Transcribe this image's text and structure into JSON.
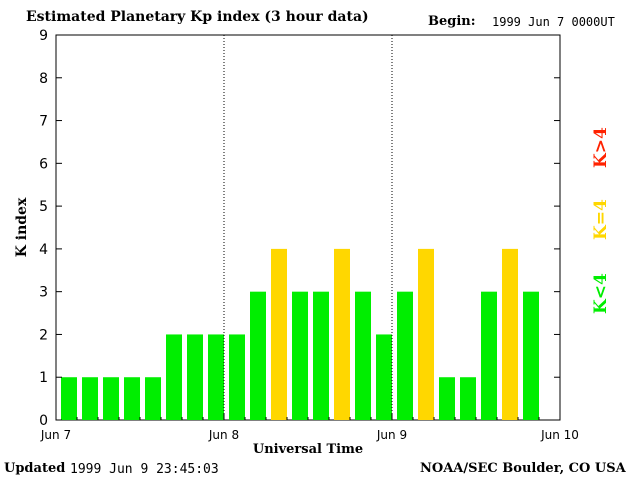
{
  "header": {
    "title": "Estimated Planetary Kp index (3 hour data)",
    "begin_label": "Begin:",
    "begin_value": "1999 Jun 7 0000UT"
  },
  "footer": {
    "updated_label": "Updated",
    "updated_value": "1999 Jun  9 23:45:03",
    "credit": "NOAA/SEC Boulder, CO USA"
  },
  "colors": {
    "low": "#00ee00",
    "equal": "#ffd700",
    "high": "#ff2200"
  },
  "legend": [
    {
      "label": "K<4",
      "color": "#00ee00"
    },
    {
      "label": "K=4",
      "color": "#ffd700"
    },
    {
      "label": "K>4",
      "color": "#ff2200"
    }
  ],
  "chart_data": {
    "type": "bar",
    "title": "Estimated Planetary Kp index (3 hour data)",
    "xlabel": "Universal Time",
    "ylabel": "K index",
    "ylim": [
      0,
      9
    ],
    "yticks": [
      "0",
      "1",
      "2",
      "3",
      "4",
      "5",
      "6",
      "7",
      "8",
      "9"
    ],
    "xticks": [
      "Jun 7",
      "Jun 8",
      "Jun 9",
      "Jun 10"
    ],
    "day_separators_at": [
      "Jun 8",
      "Jun 9"
    ],
    "interval_hours": 3,
    "values": [
      1,
      1,
      1,
      1,
      1,
      2,
      2,
      2,
      2,
      3,
      4,
      3,
      3,
      4,
      3,
      2,
      3,
      4,
      1,
      1,
      3,
      4,
      3
    ]
  }
}
